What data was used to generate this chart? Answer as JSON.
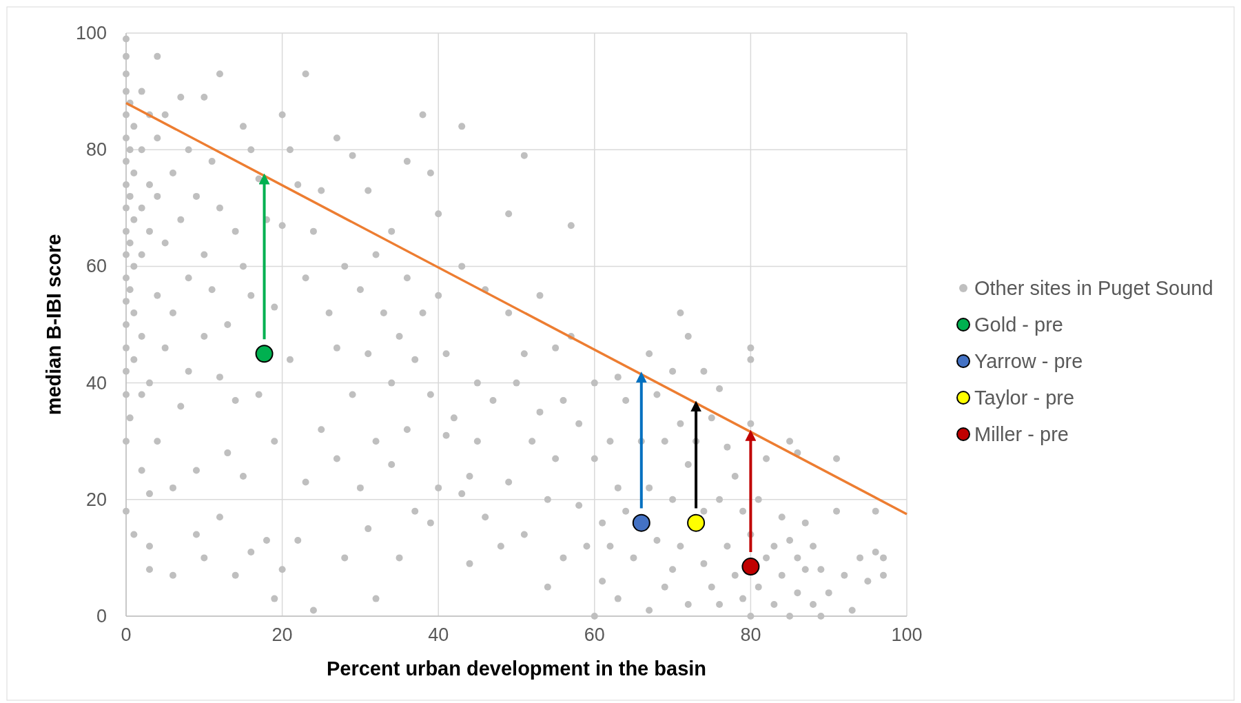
{
  "chart_data": {
    "type": "scatter",
    "xlabel": "Percent urban development in the basin",
    "ylabel": "median B-IBI score",
    "xlim": [
      0,
      100
    ],
    "ylim": [
      0,
      100
    ],
    "xticks": [
      0,
      20,
      40,
      60,
      80,
      100
    ],
    "yticks": [
      0,
      20,
      40,
      60,
      80,
      100
    ],
    "grid": true,
    "legend": "right",
    "marker": "circle",
    "series": [
      {
        "name": "Other sites in Puget Sound",
        "color": "#bfbfbf",
        "x": [
          0,
          0,
          0,
          0,
          0,
          0,
          0,
          0,
          0,
          0,
          0,
          0,
          0,
          0,
          0,
          0,
          0,
          0,
          0,
          0.5,
          0.5,
          0.5,
          0.5,
          0.5,
          0.5,
          1,
          1,
          1,
          1,
          1,
          1,
          1,
          2,
          2,
          2,
          2,
          2,
          2,
          2,
          3,
          3,
          3,
          3,
          3,
          3,
          3,
          4,
          4,
          4,
          4,
          4,
          5,
          5,
          5,
          6,
          6,
          6,
          6,
          7,
          7,
          7,
          8,
          8,
          8,
          9,
          9,
          9,
          10,
          10,
          10,
          10,
          11,
          11,
          12,
          12,
          12,
          12,
          13,
          13,
          14,
          14,
          14,
          15,
          15,
          15,
          16,
          16,
          16,
          17,
          17,
          18,
          18,
          19,
          19,
          19,
          20,
          20,
          20,
          21,
          21,
          22,
          22,
          23,
          23,
          23,
          24,
          24,
          25,
          25,
          26,
          27,
          27,
          27,
          28,
          28,
          29,
          29,
          30,
          30,
          31,
          31,
          31,
          32,
          32,
          32,
          33,
          34,
          34,
          34,
          35,
          35,
          36,
          36,
          36,
          37,
          37,
          38,
          38,
          39,
          39,
          39,
          40,
          40,
          40,
          41,
          41,
          42,
          43,
          43,
          43,
          44,
          44,
          45,
          45,
          46,
          46,
          47,
          48,
          49,
          49,
          49,
          50,
          51,
          51,
          51,
          52,
          53,
          53,
          54,
          54,
          55,
          55,
          56,
          56,
          57,
          57,
          58,
          58,
          59,
          60,
          60,
          60,
          61,
          61,
          62,
          62,
          63,
          63,
          63,
          64,
          64,
          65,
          66,
          67,
          67,
          67,
          68,
          68,
          69,
          69,
          70,
          70,
          70,
          71,
          71,
          71,
          72,
          72,
          72,
          73,
          74,
          74,
          74,
          75,
          75,
          76,
          76,
          76,
          77,
          77,
          78,
          78,
          79,
          79,
          80,
          80,
          80,
          80,
          80,
          81,
          81,
          82,
          82,
          83,
          83,
          84,
          84,
          85,
          85,
          85,
          86,
          86,
          86,
          87,
          87,
          88,
          88,
          89,
          89,
          90,
          91,
          91,
          92,
          93,
          94,
          95,
          96,
          96,
          97,
          97
        ],
        "values": [
          99,
          96,
          93,
          90,
          86,
          82,
          78,
          74,
          70,
          66,
          62,
          58,
          54,
          50,
          46,
          42,
          38,
          30,
          18,
          88,
          80,
          72,
          64,
          56,
          34,
          84,
          76,
          68,
          60,
          52,
          44,
          14,
          90,
          80,
          70,
          62,
          48,
          38,
          25,
          86,
          74,
          66,
          40,
          21,
          12,
          8,
          96,
          82,
          72,
          55,
          30,
          86,
          64,
          46,
          76,
          52,
          22,
          7,
          89,
          68,
          36,
          80,
          58,
          42,
          72,
          25,
          14,
          89,
          62,
          48,
          10,
          78,
          56,
          93,
          70,
          41,
          17,
          50,
          28,
          66,
          37,
          7,
          84,
          60,
          24,
          80,
          55,
          11,
          75,
          38,
          68,
          13,
          30,
          53,
          3,
          86,
          67,
          8,
          80,
          44,
          74,
          13,
          93,
          58,
          23,
          66,
          1,
          73,
          32,
          52,
          82,
          46,
          27,
          60,
          10,
          79,
          38,
          56,
          22,
          73,
          45,
          15,
          62,
          30,
          3,
          52,
          66,
          40,
          26,
          48,
          10,
          78,
          58,
          32,
          44,
          18,
          86,
          52,
          76,
          38,
          16,
          69,
          55,
          22,
          45,
          31,
          34,
          84,
          60,
          21,
          24,
          9,
          40,
          30,
          56,
          17,
          37,
          12,
          69,
          52,
          23,
          40,
          79,
          45,
          14,
          30,
          55,
          35,
          20,
          5,
          46,
          27,
          37,
          10,
          67,
          48,
          33,
          19,
          12,
          40,
          27,
          0,
          16,
          6,
          30,
          12,
          41,
          22,
          3,
          37,
          18,
          10,
          30,
          45,
          22,
          1,
          38,
          13,
          30,
          5,
          42,
          20,
          8,
          52,
          33,
          12,
          48,
          26,
          2,
          30,
          42,
          18,
          9,
          34,
          5,
          39,
          20,
          2,
          29,
          12,
          24,
          7,
          18,
          3,
          46,
          44,
          33,
          14,
          0,
          20,
          5,
          27,
          10,
          12,
          2,
          17,
          7,
          30,
          13,
          0,
          28,
          10,
          4,
          16,
          8,
          12,
          2,
          8,
          0,
          4,
          27,
          18,
          7,
          1,
          10,
          6,
          18,
          11,
          10,
          7
        ]
      },
      {
        "type": "line",
        "marker": "none",
        "color": "#ed7d31",
        "x": [
          0,
          100
        ],
        "values": [
          88,
          17.5
        ]
      },
      {
        "type": "line",
        "marker": "none",
        "color": "#00b050",
        "x": [
          17.7,
          17.7
        ],
        "values": [
          47.5,
          75
        ]
      },
      {
        "type": "line",
        "marker": "none",
        "color": "#0070c0",
        "x": [
          66,
          66
        ],
        "values": [
          18.5,
          41
        ]
      },
      {
        "type": "line",
        "marker": "none",
        "color": "#000000",
        "x": [
          73,
          73
        ],
        "values": [
          18.5,
          36
        ]
      },
      {
        "type": "line",
        "marker": "none",
        "color": "#c00000",
        "x": [
          80,
          80
        ],
        "values": [
          11,
          31
        ]
      },
      {
        "name": "Gold - pre",
        "color": "#00b050",
        "x": [
          17.7
        ],
        "values": [
          45
        ]
      },
      {
        "name": "Yarrow - pre",
        "color": "#4472c4",
        "x": [
          66
        ],
        "values": [
          16
        ]
      },
      {
        "name": "Taylor - pre",
        "color": "#ffff00",
        "x": [
          73
        ],
        "values": [
          16
        ]
      },
      {
        "name": "Miller - pre",
        "color": "#c00000",
        "x": [
          80
        ],
        "values": [
          8.5
        ]
      }
    ]
  }
}
